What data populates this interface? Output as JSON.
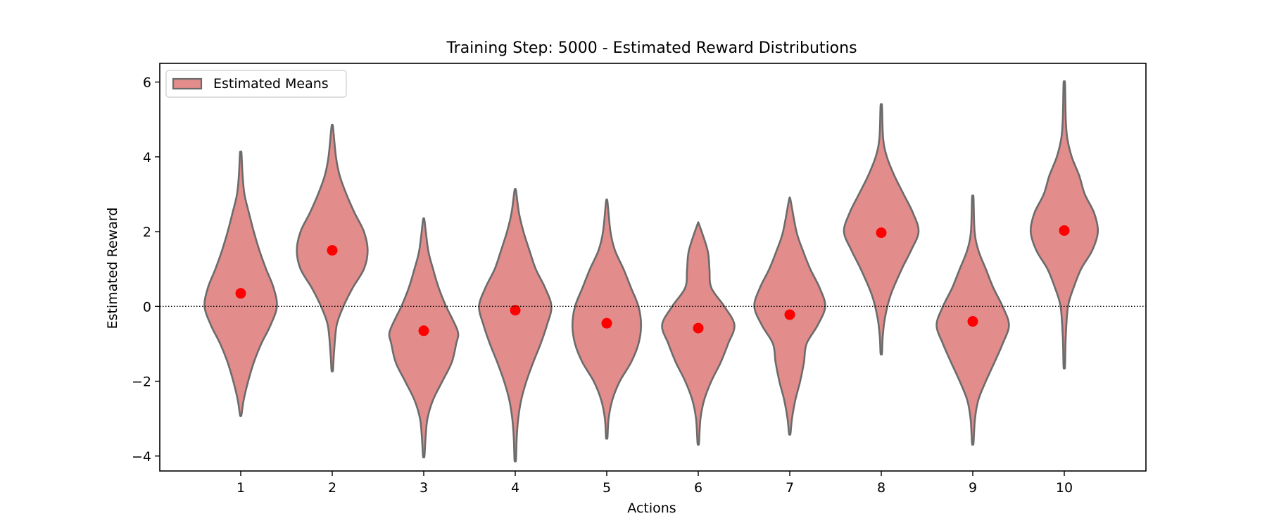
{
  "chart_data": {
    "type": "violin",
    "title": "Training Step: 5000 - Estimated Reward Distributions",
    "xlabel": "Actions",
    "ylabel": "Estimated Reward",
    "ylim": [
      -4.4,
      6.5
    ],
    "yticks": [
      -4,
      -2,
      0,
      2,
      4,
      6
    ],
    "ytick_labels": [
      "−4",
      "−2",
      "0",
      "2",
      "4",
      "6"
    ],
    "categories": [
      "1",
      "2",
      "3",
      "4",
      "5",
      "6",
      "7",
      "8",
      "9",
      "10"
    ],
    "legend": {
      "label": "Estimated Means",
      "placement": "top-left"
    },
    "reference_line": {
      "y": 0,
      "style": "dotted"
    },
    "colors": {
      "violin_fill": "#e28c8c",
      "violin_edge": "#6b6b6b",
      "mean_marker": "#ff0000",
      "reference_line": "#000000"
    },
    "series": [
      {
        "category": "1",
        "mean": 0.35,
        "min": -2.9,
        "max": 4.1,
        "profile": [
          [
            -2.9,
            0.02
          ],
          [
            -2.5,
            0.08
          ],
          [
            -2.0,
            0.2
          ],
          [
            -1.5,
            0.35
          ],
          [
            -1.0,
            0.55
          ],
          [
            -0.5,
            0.8
          ],
          [
            0.0,
            0.97
          ],
          [
            0.5,
            0.88
          ],
          [
            1.0,
            0.68
          ],
          [
            1.5,
            0.5
          ],
          [
            2.0,
            0.35
          ],
          [
            2.5,
            0.22
          ],
          [
            3.0,
            0.1
          ],
          [
            3.5,
            0.05
          ],
          [
            4.1,
            0.02
          ]
        ]
      },
      {
        "category": "2",
        "mean": 1.5,
        "min": -1.7,
        "max": 4.8,
        "profile": [
          [
            -1.7,
            0.02
          ],
          [
            -1.2,
            0.05
          ],
          [
            -0.5,
            0.12
          ],
          [
            0.0,
            0.3
          ],
          [
            0.5,
            0.55
          ],
          [
            1.0,
            0.85
          ],
          [
            1.5,
            0.95
          ],
          [
            2.0,
            0.85
          ],
          [
            2.5,
            0.6
          ],
          [
            3.0,
            0.38
          ],
          [
            3.5,
            0.2
          ],
          [
            4.0,
            0.1
          ],
          [
            4.8,
            0.02
          ]
        ]
      },
      {
        "category": "3",
        "mean": -0.65,
        "min": -4.0,
        "max": 2.3,
        "profile": [
          [
            -4.0,
            0.02
          ],
          [
            -3.5,
            0.05
          ],
          [
            -3.0,
            0.1
          ],
          [
            -2.5,
            0.25
          ],
          [
            -2.0,
            0.5
          ],
          [
            -1.5,
            0.75
          ],
          [
            -1.0,
            0.87
          ],
          [
            -0.7,
            0.92
          ],
          [
            -0.3,
            0.75
          ],
          [
            0.0,
            0.6
          ],
          [
            0.5,
            0.4
          ],
          [
            1.0,
            0.25
          ],
          [
            1.5,
            0.12
          ],
          [
            2.3,
            0.02
          ]
        ]
      },
      {
        "category": "4",
        "mean": -0.1,
        "min": -4.1,
        "max": 3.1,
        "profile": [
          [
            -4.1,
            0.02
          ],
          [
            -3.5,
            0.04
          ],
          [
            -3.0,
            0.08
          ],
          [
            -2.5,
            0.16
          ],
          [
            -2.0,
            0.3
          ],
          [
            -1.5,
            0.48
          ],
          [
            -1.0,
            0.68
          ],
          [
            -0.5,
            0.85
          ],
          [
            0.0,
            0.97
          ],
          [
            0.5,
            0.8
          ],
          [
            1.0,
            0.55
          ],
          [
            1.5,
            0.38
          ],
          [
            2.0,
            0.22
          ],
          [
            2.5,
            0.1
          ],
          [
            3.1,
            0.02
          ]
        ]
      },
      {
        "category": "5",
        "mean": -0.45,
        "min": -3.5,
        "max": 2.8,
        "profile": [
          [
            -3.5,
            0.02
          ],
          [
            -3.0,
            0.05
          ],
          [
            -2.5,
            0.15
          ],
          [
            -2.0,
            0.35
          ],
          [
            -1.5,
            0.65
          ],
          [
            -1.0,
            0.85
          ],
          [
            -0.5,
            0.92
          ],
          [
            0.0,
            0.85
          ],
          [
            0.5,
            0.65
          ],
          [
            1.0,
            0.45
          ],
          [
            1.5,
            0.22
          ],
          [
            2.0,
            0.1
          ],
          [
            2.8,
            0.02
          ]
        ]
      },
      {
        "category": "6",
        "mean": -0.58,
        "min": -3.65,
        "max": 2.2,
        "profile": [
          [
            -3.65,
            0.02
          ],
          [
            -3.0,
            0.06
          ],
          [
            -2.5,
            0.16
          ],
          [
            -2.0,
            0.35
          ],
          [
            -1.5,
            0.6
          ],
          [
            -1.0,
            0.8
          ],
          [
            -0.5,
            0.97
          ],
          [
            0.0,
            0.7
          ],
          [
            0.5,
            0.35
          ],
          [
            1.0,
            0.3
          ],
          [
            1.5,
            0.25
          ],
          [
            2.2,
            0.02
          ]
        ]
      },
      {
        "category": "7",
        "mean": -0.22,
        "min": -3.4,
        "max": 2.85,
        "profile": [
          [
            -3.4,
            0.02
          ],
          [
            -3.0,
            0.06
          ],
          [
            -2.5,
            0.15
          ],
          [
            -2.0,
            0.28
          ],
          [
            -1.5,
            0.38
          ],
          [
            -1.0,
            0.45
          ],
          [
            -0.5,
            0.75
          ],
          [
            0.0,
            0.95
          ],
          [
            0.5,
            0.8
          ],
          [
            1.0,
            0.55
          ],
          [
            1.5,
            0.35
          ],
          [
            2.0,
            0.18
          ],
          [
            2.85,
            0.02
          ]
        ]
      },
      {
        "category": "8",
        "mean": 1.97,
        "min": -1.25,
        "max": 5.35,
        "profile": [
          [
            -1.25,
            0.02
          ],
          [
            -0.8,
            0.04
          ],
          [
            -0.3,
            0.1
          ],
          [
            0.3,
            0.25
          ],
          [
            1.0,
            0.55
          ],
          [
            1.5,
            0.8
          ],
          [
            2.0,
            1.0
          ],
          [
            2.5,
            0.85
          ],
          [
            3.0,
            0.6
          ],
          [
            3.5,
            0.35
          ],
          [
            4.0,
            0.15
          ],
          [
            4.5,
            0.05
          ],
          [
            5.35,
            0.02
          ]
        ]
      },
      {
        "category": "9",
        "mean": -0.4,
        "min": -3.65,
        "max": 2.9,
        "profile": [
          [
            -3.65,
            0.02
          ],
          [
            -3.0,
            0.06
          ],
          [
            -2.5,
            0.15
          ],
          [
            -2.0,
            0.35
          ],
          [
            -1.5,
            0.58
          ],
          [
            -1.0,
            0.8
          ],
          [
            -0.5,
            0.97
          ],
          [
            0.0,
            0.8
          ],
          [
            0.5,
            0.55
          ],
          [
            1.0,
            0.35
          ],
          [
            1.5,
            0.15
          ],
          [
            2.0,
            0.05
          ],
          [
            2.9,
            0.02
          ]
        ]
      },
      {
        "category": "10",
        "mean": 2.03,
        "min": -1.6,
        "max": 5.95,
        "profile": [
          [
            -1.6,
            0.02
          ],
          [
            -0.8,
            0.04
          ],
          [
            0.0,
            0.1
          ],
          [
            0.5,
            0.25
          ],
          [
            1.0,
            0.45
          ],
          [
            1.5,
            0.75
          ],
          [
            2.0,
            0.9
          ],
          [
            2.5,
            0.8
          ],
          [
            3.0,
            0.55
          ],
          [
            3.5,
            0.4
          ],
          [
            4.0,
            0.2
          ],
          [
            4.5,
            0.08
          ],
          [
            5.0,
            0.04
          ],
          [
            5.95,
            0.02
          ]
        ]
      }
    ]
  }
}
